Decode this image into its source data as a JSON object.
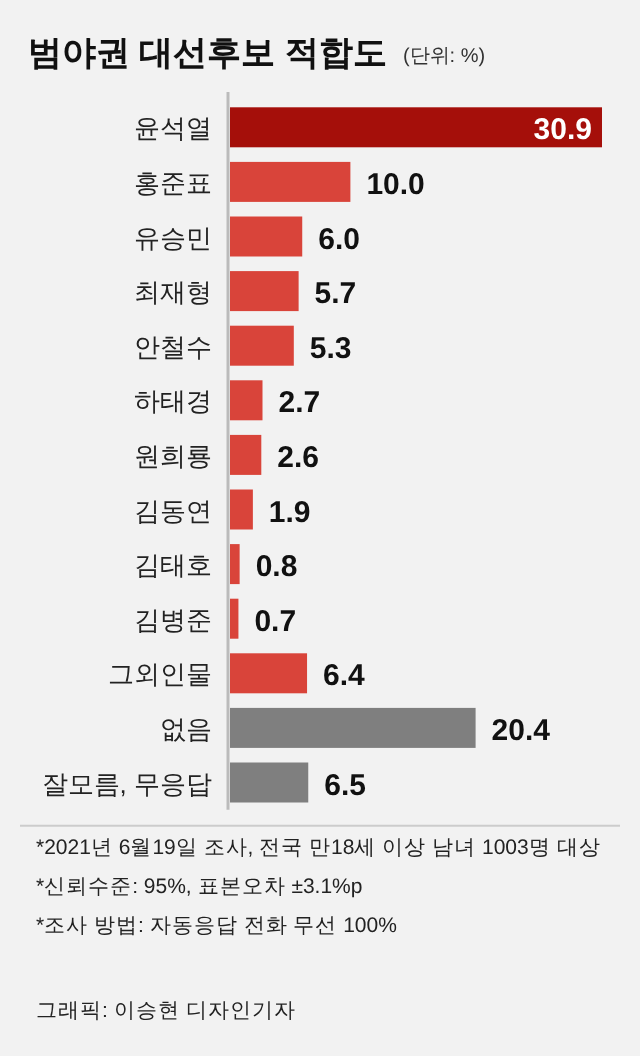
{
  "chart_data": {
    "type": "bar",
    "orientation": "horizontal",
    "title": "범야권 대선후보 적합도",
    "subtitle": "(단위: %)",
    "categories": [
      "윤석열",
      "홍준표",
      "유승민",
      "최재형",
      "안철수",
      "하태경",
      "원희룡",
      "김동연",
      "김태호",
      "김병준",
      "그외인물",
      "없음",
      "잘모름, 무응답"
    ],
    "values": [
      30.9,
      10.0,
      6.0,
      5.7,
      5.3,
      2.7,
      2.6,
      1.9,
      0.8,
      0.7,
      6.4,
      20.4,
      6.5
    ],
    "value_labels": [
      "30.9",
      "10.0",
      "6.0",
      "5.7",
      "5.3",
      "2.7",
      "2.6",
      "1.9",
      "0.8",
      "0.7",
      "6.4",
      "20.4",
      "6.5"
    ],
    "colors": [
      "#a50f0a",
      "#d9443a",
      "#d9443a",
      "#d9443a",
      "#d9443a",
      "#d9443a",
      "#d9443a",
      "#d9443a",
      "#d9443a",
      "#d9443a",
      "#d9443a",
      "#7f7f7f",
      "#7f7f7f"
    ],
    "annotations": [
      "*2021년 6월19일 조사, 전국 만18세 이상 남녀 1003명 대상",
      "*신뢰수준: 95%, 표본오차 ±3.1%p",
      "*조사 방법: 자동응답 전화 무선 100%",
      "그래픽: 이승현 디자인기자"
    ]
  }
}
